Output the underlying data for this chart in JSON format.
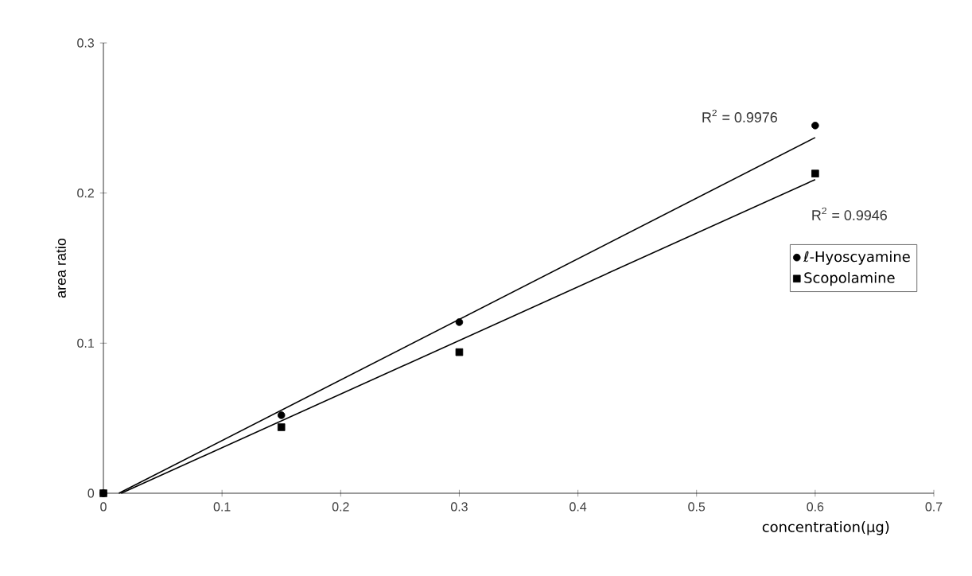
{
  "chart_data": {
    "type": "scatter",
    "xlabel": "concentration(μg)",
    "ylabel": "area ratio",
    "x": [
      0,
      0.15,
      0.3,
      0.6
    ],
    "series": [
      {
        "name": "ℓ-Hyoscyamine",
        "color": "#000000",
        "marker": "circle",
        "values": [
          0,
          0.052,
          0.114,
          0.245
        ]
      },
      {
        "name": "Scopolamine",
        "color": "#000000",
        "marker": "square",
        "values": [
          0,
          0.044,
          0.094,
          0.213
        ]
      },
      {
        "type": "line",
        "color": "#000000",
        "marker": "none",
        "x": [
          0.013,
          0.6
        ],
        "values": [
          0,
          0.237
        ]
      },
      {
        "type": "line",
        "color": "#000000",
        "marker": "none",
        "x": [
          0.015,
          0.6
        ],
        "values": [
          0,
          0.209
        ]
      }
    ],
    "annotations": [
      "R$^{2}$ = 0.9976",
      "R$^{2}$ = 0.9946"
    ],
    "xlim": [
      0,
      0.7
    ],
    "ylim": [
      0,
      0.3
    ],
    "xticks": [
      0,
      0.1,
      0.2,
      0.3,
      0.4,
      0.5,
      0.6,
      0.7
    ],
    "yticks": [
      0,
      0.1,
      0.2,
      0.3
    ],
    "grid": false,
    "legend": "right",
    "line_style": "solid"
  }
}
